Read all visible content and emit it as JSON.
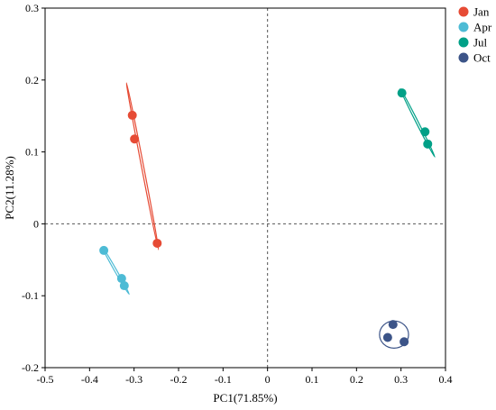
{
  "chart_data": {
    "type": "scatter",
    "xlabel": "PC1(71.85%)",
    "ylabel": "PC2(11.28%)",
    "xlim": [
      -0.5,
      0.4
    ],
    "ylim": [
      -0.2,
      0.3
    ],
    "xticks": [
      -0.5,
      -0.4,
      -0.3,
      -0.2,
      -0.1,
      0,
      0.1,
      0.2,
      0.3,
      0.4
    ],
    "xtick_labels": [
      "-0.5",
      "-0.4",
      "-0.3",
      "-0.2",
      "-0.1",
      "0",
      "0.1",
      "0.2",
      "0.3",
      "0.4"
    ],
    "yticks": [
      -0.2,
      -0.1,
      0,
      0.1,
      0.2,
      0.3
    ],
    "ytick_labels": [
      "-0.2",
      "-0.1",
      "0",
      "0.1",
      "0.2",
      "0.3"
    ],
    "grid": false,
    "reference_lines": {
      "x": 0,
      "y": 0,
      "style": "dashed"
    },
    "legend_position": "top-right-outside",
    "series": [
      {
        "name": "Jan",
        "color": "#e64b35",
        "points": [
          [
            -0.304,
            0.151
          ],
          [
            -0.299,
            0.118
          ],
          [
            -0.248,
            -0.027
          ]
        ],
        "ellipse": [
          [
            -0.317,
            0.196
          ],
          [
            -0.245,
            -0.036
          ]
        ]
      },
      {
        "name": "Apr",
        "color": "#4dbbd5",
        "points": [
          [
            -0.368,
            -0.037
          ],
          [
            -0.328,
            -0.076
          ],
          [
            -0.322,
            -0.086
          ]
        ],
        "ellipse": [
          [
            -0.372,
            -0.032
          ],
          [
            -0.311,
            -0.098
          ]
        ]
      },
      {
        "name": "Jul",
        "color": "#00a087",
        "points": [
          [
            0.302,
            0.182
          ],
          [
            0.354,
            0.128
          ],
          [
            0.36,
            0.111
          ]
        ],
        "ellipse": [
          [
            0.298,
            0.188
          ],
          [
            0.376,
            0.093
          ]
        ]
      },
      {
        "name": "Oct",
        "color": "#3c5488",
        "points": [
          [
            0.282,
            -0.14
          ],
          [
            0.27,
            -0.158
          ],
          [
            0.307,
            -0.164
          ]
        ],
        "ellipse": [
          [
            0.277,
            -0.137
          ],
          [
            0.268,
            -0.159
          ],
          [
            0.308,
            -0.166
          ]
        ]
      }
    ]
  }
}
